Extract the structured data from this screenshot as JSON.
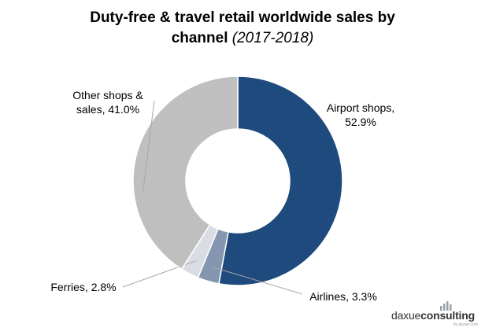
{
  "chart_data": {
    "type": "pie",
    "donut": true,
    "title": "Duty-free & travel retail worldwide sales by channel",
    "title_line1": "Duty-free & travel retail worldwide sales by",
    "title_line2_bold": "channel",
    "title_line2_italic": "(2017-2018)",
    "slices": [
      {
        "label": "Airport shops",
        "value": 52.9,
        "color": "#1f4a7d",
        "label_line1": "Airport shops,",
        "label_line2": "52.9%"
      },
      {
        "label": "Airlines",
        "value": 3.3,
        "color": "#8496b0",
        "label_line1": "Airlines,  3.3%"
      },
      {
        "label": "Ferries",
        "value": 2.8,
        "color": "#d9dce3",
        "label_line1": "Ferries, 2.8%"
      },
      {
        "label": "Other shops & sales",
        "value": 41.0,
        "color": "#bfbfbf",
        "label_line1": "Other shops &",
        "label_line2": "sales, 41.0%"
      }
    ]
  },
  "logo": {
    "text_regular": "daxue",
    "text_bold": "consulting",
    "tagline": "by daxue.com",
    "color": "#333333"
  }
}
